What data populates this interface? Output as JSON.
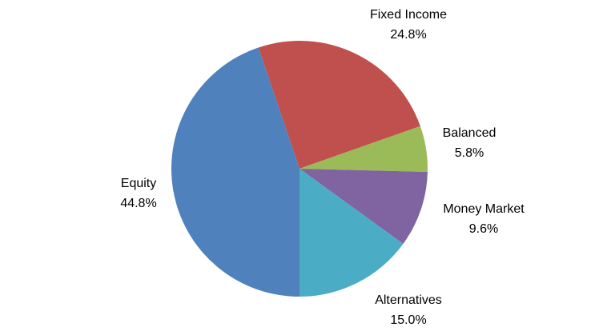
{
  "chart_data": {
    "type": "pie",
    "categories": [
      "Fixed Income",
      "Balanced",
      "Money Market",
      "Alternatives",
      "Equity"
    ],
    "values": [
      24.8,
      5.8,
      9.6,
      15.0,
      44.8
    ],
    "value_labels": [
      "24.8%",
      "5.8%",
      "9.6%",
      "15.0%",
      "44.8%"
    ],
    "colors": [
      "#c0504d",
      "#9bbb59",
      "#8064a2",
      "#4bacc6",
      "#4f81bd"
    ]
  }
}
